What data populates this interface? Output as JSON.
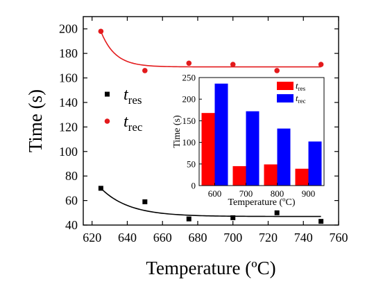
{
  "chart_data": [
    {
      "type": "scatter",
      "xlabel": "Temperature (ºC)",
      "ylabel": "Time (s)",
      "xlim": [
        615,
        760
      ],
      "ylim": [
        40,
        210
      ],
      "xticks": [
        620,
        640,
        660,
        680,
        700,
        720,
        740,
        760
      ],
      "yticks": [
        40,
        60,
        80,
        100,
        120,
        140,
        160,
        180,
        200
      ],
      "legend_position": "left",
      "series": [
        {
          "name": "res",
          "legend_prefix": "t",
          "legend_sub": "res",
          "marker": "square",
          "color": "#000000",
          "x": [
            625,
            650,
            675,
            700,
            725,
            750
          ],
          "y": [
            70,
            59,
            45,
            46,
            50,
            43
          ],
          "fit": {
            "a": 47,
            "b": 23,
            "tau": 16
          }
        },
        {
          "name": "rec",
          "legend_prefix": "t",
          "legend_sub": "rec",
          "marker": "circle",
          "color": "#e31a1c",
          "x": [
            625,
            650,
            675,
            700,
            725,
            750
          ],
          "y": [
            198,
            166,
            172,
            171,
            166,
            171
          ],
          "fit": {
            "a": 169,
            "b": 29,
            "tau": 8
          }
        }
      ]
    },
    {
      "type": "bar",
      "xlabel": "Temperature (ºC)",
      "ylabel": "Time (s)",
      "categories": [
        "600",
        "700",
        "800",
        "900"
      ],
      "ylim": [
        0,
        250
      ],
      "yticks": [
        0,
        50,
        100,
        150,
        200,
        250
      ],
      "legend_position": "top-right",
      "series": [
        {
          "name": "res",
          "legend_prefix": "t",
          "legend_sub": "res",
          "color": "#ff0000",
          "values": [
            168,
            45,
            49,
            39
          ]
        },
        {
          "name": "rec",
          "legend_prefix": "t",
          "legend_sub": "rec",
          "color": "#0000ff",
          "values": [
            236,
            172,
            132,
            102
          ]
        }
      ]
    }
  ]
}
